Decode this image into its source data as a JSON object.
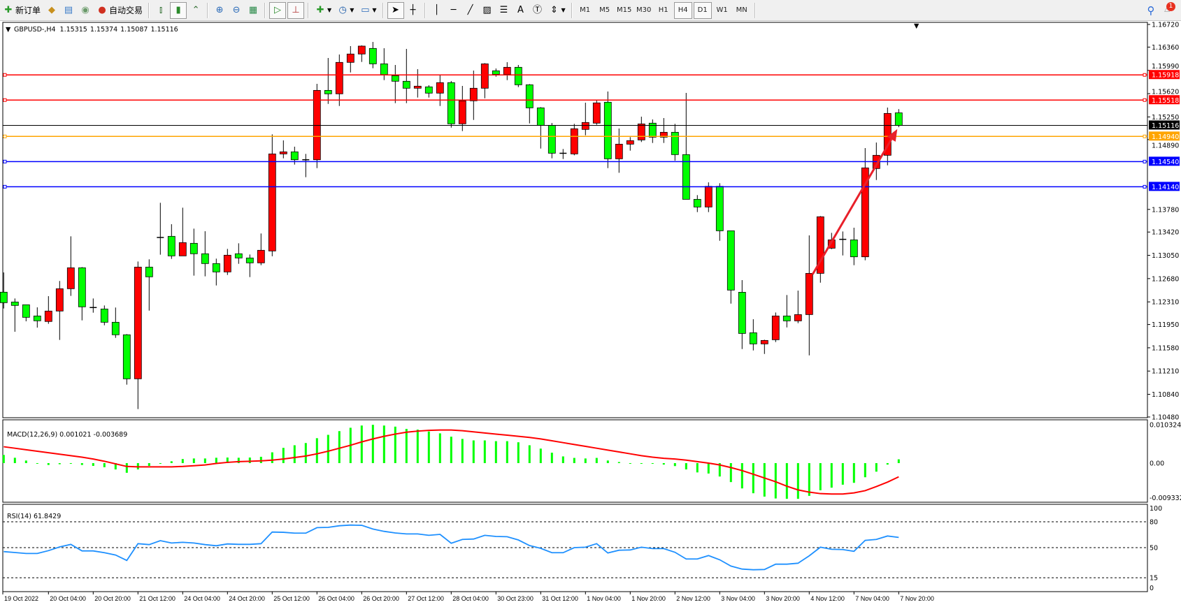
{
  "toolbar": {
    "new_order_label": "新订单",
    "auto_trading_label": "自动交易",
    "periods": [
      "M1",
      "M5",
      "M15",
      "M30",
      "H1",
      "H4",
      "D1",
      "W1",
      "MN"
    ],
    "active_period": "H4",
    "notification_count": "1"
  },
  "chart": {
    "symbol": "GBPUSD-,H4",
    "open": "1.15315",
    "high": "1.15374",
    "low": "1.15087",
    "close": "1.15116",
    "colors": {
      "bull": "#ff0000",
      "bear": "#00ff00",
      "bid_line": "#000000"
    },
    "price_ticks": [
      "1.16720",
      "1.16360",
      "1.15990",
      "1.15620",
      "1.15250",
      "1.14890",
      "1.13780",
      "1.13420",
      "1.13050",
      "1.12680",
      "1.12310",
      "1.11950",
      "1.11580",
      "1.11210",
      "1.10840",
      "1.10480"
    ],
    "bid": "1.15116",
    "levels": [
      {
        "price": "1.15918",
        "color": "#ff0000"
      },
      {
        "price": "1.15518",
        "color": "#ff0000"
      },
      {
        "price": "1.14940",
        "color": "#ffa500"
      },
      {
        "price": "1.14540",
        "color": "#0000ff"
      },
      {
        "price": "1.14140",
        "color": "#0000ff"
      }
    ],
    "arrow": {
      "color": "#e8202a",
      "from_candle": 72,
      "from_price": 1.1275,
      "to_candle": 79.5,
      "to_price": 1.1498
    },
    "candles": [
      [
        1.12464,
        1.12778,
        1.12205,
        1.12297
      ],
      [
        1.12308,
        1.12364,
        1.11835,
        1.12253
      ],
      [
        1.12264,
        1.12264,
        1.12001,
        1.12064
      ],
      [
        1.12086,
        1.12223,
        1.11901,
        1.12009
      ],
      [
        1.11998,
        1.12401,
        1.11961,
        1.12164
      ],
      [
        1.12164,
        1.12642,
        1.11705,
        1.12519
      ],
      [
        1.12519,
        1.13352,
        1.12405,
        1.12852
      ],
      [
        1.12852,
        1.12863,
        1.12016,
        1.12231
      ],
      [
        1.1222,
        1.12364,
        1.12138,
        1.12216
      ],
      [
        1.12197,
        1.12253,
        1.11938,
        1.11986
      ],
      [
        1.11986,
        1.1222,
        1.11738,
        1.11787
      ],
      [
        1.11787,
        1.11798,
        1.10994,
        1.11087
      ],
      [
        1.11087,
        1.12952,
        1.10606,
        1.12863
      ],
      [
        1.12863,
        1.12986,
        1.12171,
        1.12708
      ],
      [
        1.13334,
        1.13885,
        1.1306,
        1.1333
      ],
      [
        1.13352,
        1.13545,
        1.12993,
        1.13041
      ],
      [
        1.13041,
        1.13807,
        1.13041,
        1.13252
      ],
      [
        1.13241,
        1.13474,
        1.12727,
        1.13075
      ],
      [
        1.13075,
        1.13433,
        1.12716,
        1.12919
      ],
      [
        1.12919,
        1.12997,
        1.12571,
        1.12786
      ],
      [
        1.12786,
        1.13152,
        1.12738,
        1.13052
      ],
      [
        1.13075,
        1.13241,
        1.12915,
        1.13008
      ],
      [
        1.13008,
        1.13063,
        1.12704,
        1.1293
      ],
      [
        1.1293,
        1.13397,
        1.12893,
        1.1313
      ],
      [
        1.13119,
        1.14973,
        1.13035,
        1.14662
      ],
      [
        1.14662,
        1.14877,
        1.14592,
        1.14695
      ],
      [
        1.14695,
        1.14777,
        1.14492,
        1.14569
      ],
      [
        1.14569,
        1.14662,
        1.14292,
        1.14566
      ],
      [
        1.14569,
        1.15776,
        1.14436,
        1.15672
      ],
      [
        1.15672,
        1.16187,
        1.15457,
        1.15617
      ],
      [
        1.15617,
        1.16242,
        1.15424,
        1.16117
      ],
      [
        1.16117,
        1.16376,
        1.15957,
        1.1625
      ],
      [
        1.1625,
        1.16387,
        1.16124,
        1.16376
      ],
      [
        1.16339,
        1.16442,
        1.16024,
        1.16094
      ],
      [
        1.16094,
        1.16342,
        1.15835,
        1.15924
      ],
      [
        1.15905,
        1.16076,
        1.15469,
        1.15817
      ],
      [
        1.15817,
        1.16331,
        1.15469,
        1.15706
      ],
      [
        1.15706,
        1.16009,
        1.15558,
        1.15739
      ],
      [
        1.15728,
        1.15754,
        1.15558,
        1.15628
      ],
      [
        1.15628,
        1.15917,
        1.15424,
        1.15795
      ],
      [
        1.15795,
        1.15821,
        1.1508,
        1.1514
      ],
      [
        1.1514,
        1.15743,
        1.15025,
        1.15506
      ],
      [
        1.15506,
        1.15987,
        1.15202,
        1.15706
      ],
      [
        1.15706,
        1.16105,
        1.15546,
        1.16094
      ],
      [
        1.15983,
        1.1602,
        1.1589,
        1.15927
      ],
      [
        1.15927,
        1.1612,
        1.15835,
        1.16039
      ],
      [
        1.16039,
        1.16076,
        1.15724,
        1.15761
      ],
      [
        1.15761,
        1.15772,
        1.15147,
        1.15394
      ],
      [
        1.15394,
        1.15406,
        1.14747,
        1.15117
      ],
      [
        1.15117,
        1.15154,
        1.14592,
        1.14673
      ],
      [
        1.14672,
        1.1474,
        1.14581,
        1.1467
      ],
      [
        1.14662,
        1.1514,
        1.1464,
        1.15062
      ],
      [
        1.15051,
        1.15476,
        1.14958,
        1.15162
      ],
      [
        1.15151,
        1.1551,
        1.15125,
        1.15473
      ],
      [
        1.15484,
        1.15654,
        1.14436,
        1.14584
      ],
      [
        1.14584,
        1.15066,
        1.14362,
        1.14817
      ],
      [
        1.14817,
        1.14929,
        1.14714,
        1.14873
      ],
      [
        1.14884,
        1.15254,
        1.14851,
        1.15139
      ],
      [
        1.15151,
        1.1521,
        1.14836,
        1.14928
      ],
      [
        1.14928,
        1.15232,
        1.14836,
        1.15006
      ],
      [
        1.15006,
        1.1514,
        1.14555,
        1.14651
      ],
      [
        1.14651,
        1.15632,
        1.1394,
        1.1394
      ],
      [
        1.1394,
        1.14007,
        1.13737,
        1.13818
      ],
      [
        1.13818,
        1.1421,
        1.13737,
        1.14147
      ],
      [
        1.14147,
        1.14196,
        1.13281,
        1.1344
      ],
      [
        1.1344,
        1.1344,
        1.12282,
        1.12497
      ],
      [
        1.12463,
        1.12656,
        1.1156,
        1.11808
      ],
      [
        1.11819,
        1.12034,
        1.11538,
        1.11642
      ],
      [
        1.11642,
        1.11708,
        1.11482,
        1.11697
      ],
      [
        1.11708,
        1.12141,
        1.11671,
        1.12086
      ],
      [
        1.12086,
        1.12419,
        1.11904,
        1.12008
      ],
      [
        1.12008,
        1.12489,
        1.11971,
        1.12108
      ],
      [
        1.12108,
        1.13366,
        1.1146,
        1.12763
      ],
      [
        1.12763,
        1.13674,
        1.12615,
        1.13663
      ],
      [
        1.13163,
        1.13407,
        1.13148,
        1.13296
      ],
      [
        1.13304,
        1.13429,
        1.13048,
        1.133
      ],
      [
        1.13296,
        1.13489,
        1.12893,
        1.13026
      ],
      [
        1.13026,
        1.14754,
        1.12971,
        1.1444
      ],
      [
        1.14429,
        1.14843,
        1.14247,
        1.1464
      ],
      [
        1.1464,
        1.15399,
        1.14481,
        1.15306
      ],
      [
        1.15315,
        1.15374,
        1.15087,
        1.15116
      ]
    ],
    "time_labels": [
      "19 Oct 2022",
      "20 Oct 04:00",
      "20 Oct 20:00",
      "21 Oct 12:00",
      "24 Oct 04:00",
      "24 Oct 20:00",
      "25 Oct 12:00",
      "26 Oct 04:00",
      "26 Oct 20:00",
      "27 Oct 12:00",
      "28 Oct 04:00",
      "30 Oct 23:00",
      "31 Oct 12:00",
      "1 Nov 04:00",
      "1 Nov 20:00",
      "2 Nov 12:00",
      "3 Nov 04:00",
      "3 Nov 20:00",
      "4 Nov 12:00",
      "7 Nov 04:00",
      "7 Nov 20:00"
    ]
  },
  "macd": {
    "label": "MACD(12,26,9) 0.001021 -0.003689",
    "axis_labels": [
      "0.010324",
      "0.00",
      "-0.009332"
    ],
    "range": [
      -0.009332,
      0.010324
    ],
    "hist_color": "#00ff00",
    "signal_color": "#ff0000",
    "histogram": [
      0.0022,
      0.00144,
      0.00069,
      -0.0001,
      -0.0005,
      -0.0003,
      -0.0001,
      -0.0005,
      -0.00075,
      -0.0011,
      -0.0017,
      -0.0026,
      -0.0017,
      -0.00075,
      -0.0001,
      0.0005,
      0.0011,
      0.00125,
      0.00125,
      0.00144,
      0.0015,
      0.00144,
      0.0015,
      0.0017,
      0.0029,
      0.0041,
      0.0048,
      0.0054,
      0.0067,
      0.0076,
      0.0086,
      0.0095,
      0.0101,
      0.0103,
      0.0101,
      0.0098,
      0.0092,
      0.009,
      0.0085,
      0.008,
      0.0071,
      0.0065,
      0.0061,
      0.0061,
      0.0059,
      0.0059,
      0.0056,
      0.0048,
      0.0039,
      0.0028,
      0.0018,
      0.0014,
      0.00125,
      0.0014,
      0.0007,
      0.0003,
      0.0,
      -0.0001,
      -0.0001,
      -0.0004,
      -0.0008,
      -0.0017,
      -0.0025,
      -0.0028,
      -0.0036,
      -0.0051,
      -0.0068,
      -0.0081,
      -0.009,
      -0.0095,
      -0.0096,
      -0.0096,
      -0.0088,
      -0.0073,
      -0.0066,
      -0.0058,
      -0.0053,
      -0.0038,
      -0.0023,
      -0.0004,
      0.001021
    ],
    "signal": [
      0.0044,
      0.004,
      0.0036,
      0.0032,
      0.0028,
      0.0024,
      0.002,
      0.0016,
      0.0011,
      0.0005,
      -0.0002,
      -0.0009,
      -0.001,
      -0.001,
      -0.001,
      -0.001,
      -0.0009,
      -0.0007,
      -0.0005,
      -0.0001,
      0.0002,
      0.0004,
      0.0005,
      0.0006,
      0.0008,
      0.0011,
      0.0015,
      0.0019,
      0.0025,
      0.0032,
      0.004,
      0.0048,
      0.0057,
      0.0065,
      0.0072,
      0.0078,
      0.0083,
      0.0086,
      0.0088,
      0.0089,
      0.0089,
      0.0087,
      0.0084,
      0.0081,
      0.0078,
      0.0075,
      0.0072,
      0.0069,
      0.0065,
      0.006,
      0.0055,
      0.005,
      0.0045,
      0.004,
      0.0035,
      0.003,
      0.0025,
      0.002,
      0.0016,
      0.0013,
      0.0011,
      0.0008,
      0.0004,
      0.0,
      -0.0005,
      -0.0012,
      -0.002,
      -0.003,
      -0.004,
      -0.005,
      -0.0062,
      -0.0072,
      -0.0078,
      -0.0082,
      -0.0083,
      -0.0083,
      -0.008,
      -0.0074,
      -0.0063,
      -0.0051,
      -0.003689
    ]
  },
  "rsi": {
    "label": "RSI(14) 61.8429",
    "axis_labels": [
      "100",
      "80",
      "50",
      "15",
      "0"
    ],
    "levels": [
      80,
      50,
      15
    ],
    "color": "#1e90ff",
    "values": [
      45.4,
      44.3,
      43.2,
      43.2,
      46.5,
      50.8,
      53.8,
      46.2,
      46.2,
      44.1,
      41.4,
      35.1,
      54.6,
      53.5,
      58.1,
      55.4,
      56.2,
      55.4,
      53.5,
      52.2,
      54.3,
      53.8,
      53.8,
      54.6,
      68.1,
      67.8,
      66.8,
      66.8,
      73.2,
      73.5,
      75.4,
      76.2,
      75.9,
      71.6,
      68.9,
      67.0,
      65.9,
      65.9,
      64.3,
      65.4,
      55.1,
      59.5,
      60.0,
      64.3,
      63.0,
      62.7,
      58.9,
      52.4,
      49.2,
      44.1,
      44.1,
      50.0,
      50.5,
      54.6,
      43.8,
      47.0,
      47.3,
      50.5,
      48.9,
      48.9,
      44.6,
      36.8,
      36.8,
      40.8,
      35.9,
      28.6,
      25.1,
      24.3,
      24.6,
      30.8,
      30.8,
      31.9,
      40.5,
      50.5,
      48.1,
      47.8,
      45.7,
      58.4,
      59.5,
      63.5,
      61.8429
    ]
  }
}
